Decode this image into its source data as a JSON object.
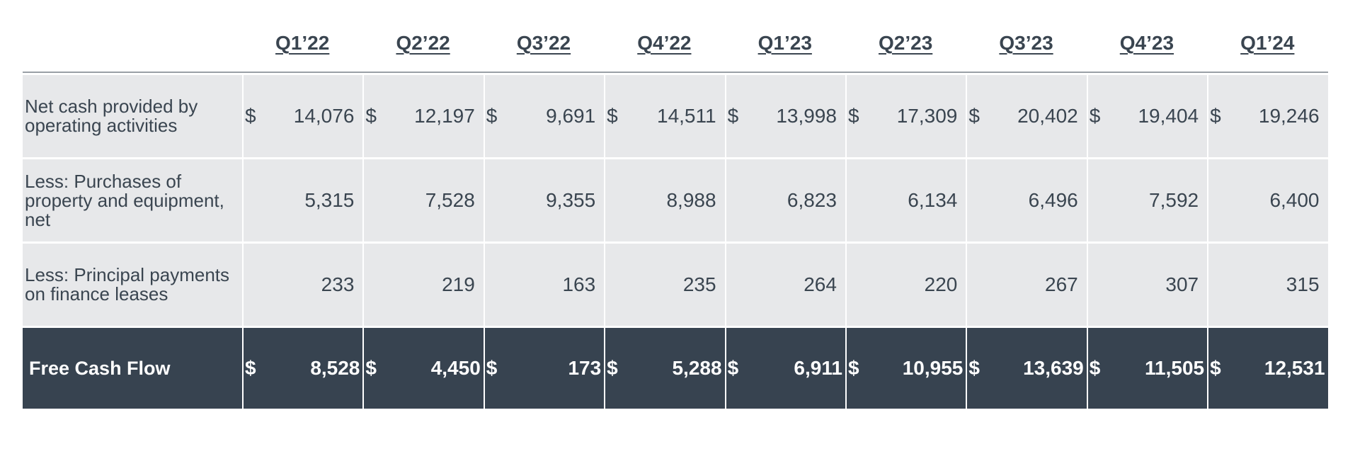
{
  "quarters": [
    "Q1’22",
    "Q2’22",
    "Q3’22",
    "Q4’22",
    "Q1’23",
    "Q2’23",
    "Q3’23",
    "Q4’23",
    "Q1’24"
  ],
  "rows": [
    {
      "label": "Net cash provided by operating activities",
      "currency": "$",
      "values": [
        "14,076",
        "12,197",
        "9,691",
        "14,511",
        "13,998",
        "17,309",
        "20,402",
        "19,404",
        "19,246"
      ]
    },
    {
      "label": "Less: Purchases of property and equipment, net",
      "currency": "",
      "values": [
        "5,315",
        "7,528",
        "9,355",
        "8,988",
        "6,823",
        "6,134",
        "6,496",
        "7,592",
        "6,400"
      ]
    },
    {
      "label": "Less: Principal payments on finance leases",
      "currency": "",
      "values": [
        "233",
        "219",
        "163",
        "235",
        "264",
        "220",
        "267",
        "307",
        "315"
      ]
    }
  ],
  "total": {
    "label": "Free Cash Flow",
    "currency": "$",
    "values": [
      "8,528",
      "4,450",
      "173",
      "5,288",
      "6,911",
      "10,955",
      "13,639",
      "11,505",
      "12,531"
    ]
  },
  "colors": {
    "row_background": "#e7e8ea",
    "total_background": "#374350",
    "text": "#3a4550"
  }
}
